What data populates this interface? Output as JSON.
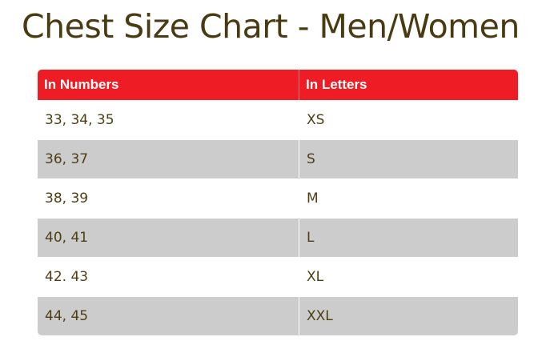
{
  "title": "Chest Size Chart - Men/Women",
  "table": {
    "headers": [
      "In Numbers",
      "In Letters"
    ],
    "rows": [
      {
        "numbers": "33, 34, 35",
        "letters": "XS"
      },
      {
        "numbers": "36, 37",
        "letters": "S"
      },
      {
        "numbers": "38, 39",
        "letters": "M"
      },
      {
        "numbers": "40, 41",
        "letters": "L"
      },
      {
        "numbers": "42. 43",
        "letters": "XL"
      },
      {
        "numbers": "44, 45",
        "letters": "XXL"
      }
    ]
  },
  "colors": {
    "title_text": "#4a3a12",
    "header_background": "#ee1c25",
    "header_text": "#ffffff",
    "stripe_background": "#cccccc",
    "cell_text": "#4f3e14"
  }
}
